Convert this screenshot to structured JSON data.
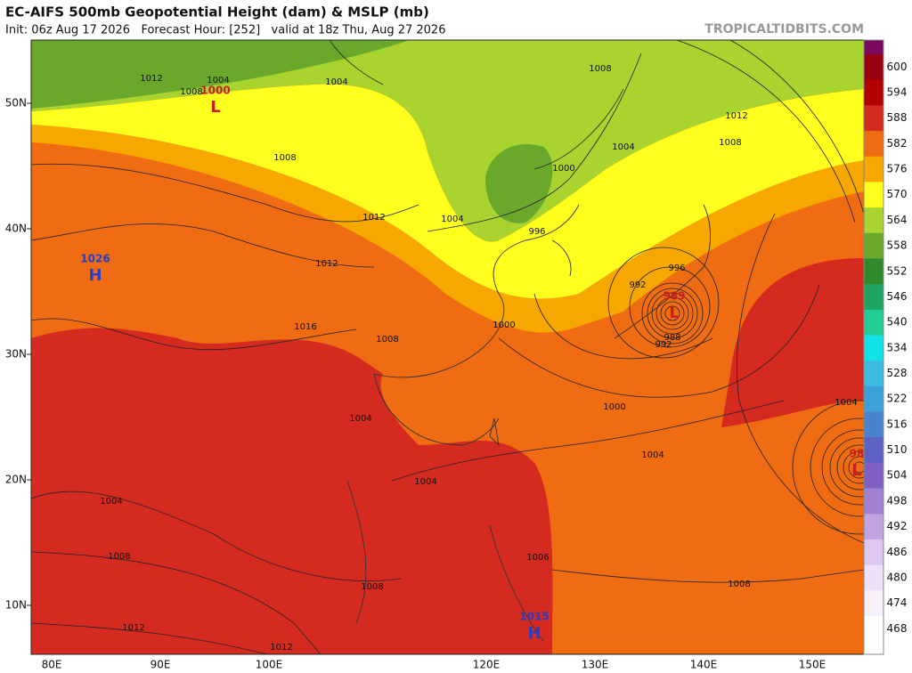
{
  "header": {
    "title": "EC-AIFS 500mb Geopotential Height (dam) & MSLP (mb)",
    "subtitle": "Init: 06z Aug 17 2026   Forecast Hour: [252]   valid at 18z Thu, Aug 27 2026",
    "watermark": "TROPICALTIDBITS.COM"
  },
  "map": {
    "lat_labels": [
      "50N",
      "40N",
      "30N",
      "20N",
      "10N"
    ],
    "lon_labels": [
      "80E",
      "90E",
      "100E",
      "120E",
      "130E",
      "140E",
      "150E"
    ],
    "pressure_labels": [
      "1008",
      "1004",
      "1012",
      "1004",
      "1008",
      "1012",
      "1008",
      "1004",
      "1000",
      "1004",
      "996",
      "1012",
      "1008",
      "1012",
      "1016",
      "1008",
      "1004",
      "1000",
      "1000",
      "1004",
      "1004",
      "1004",
      "1008",
      "1008",
      "1006",
      "1012",
      "1012",
      "1008",
      "1004",
      "992",
      "988",
      "992",
      "996"
    ],
    "centers": [
      {
        "letter": "L",
        "value": "1000"
      },
      {
        "letter": "H",
        "value": "1026"
      },
      {
        "letter": "L",
        "value": "989"
      },
      {
        "letter": "L",
        "value": "98"
      },
      {
        "letter": "H",
        "value": "1015"
      }
    ]
  },
  "colorbar": {
    "levels": [
      600,
      594,
      588,
      582,
      576,
      570,
      564,
      558,
      552,
      546,
      540,
      534,
      528,
      522,
      516,
      510,
      504,
      498,
      492,
      486,
      480,
      474,
      468
    ],
    "colors": [
      "#9a0010",
      "#b30000",
      "#d42a1f",
      "#ef6c12",
      "#f7a800",
      "#ffff1e",
      "#a9d32e",
      "#6aa82c",
      "#2f8a2c",
      "#1ea463",
      "#24cc96",
      "#12e2e6",
      "#3cbbe2",
      "#3ea0d8",
      "#4b82d0",
      "#5f62c2",
      "#7f61c3",
      "#a182d2",
      "#c2a3e2",
      "#dcc7f0",
      "#eee0f7",
      "#f6f0f8",
      "#ffffff"
    ]
  }
}
